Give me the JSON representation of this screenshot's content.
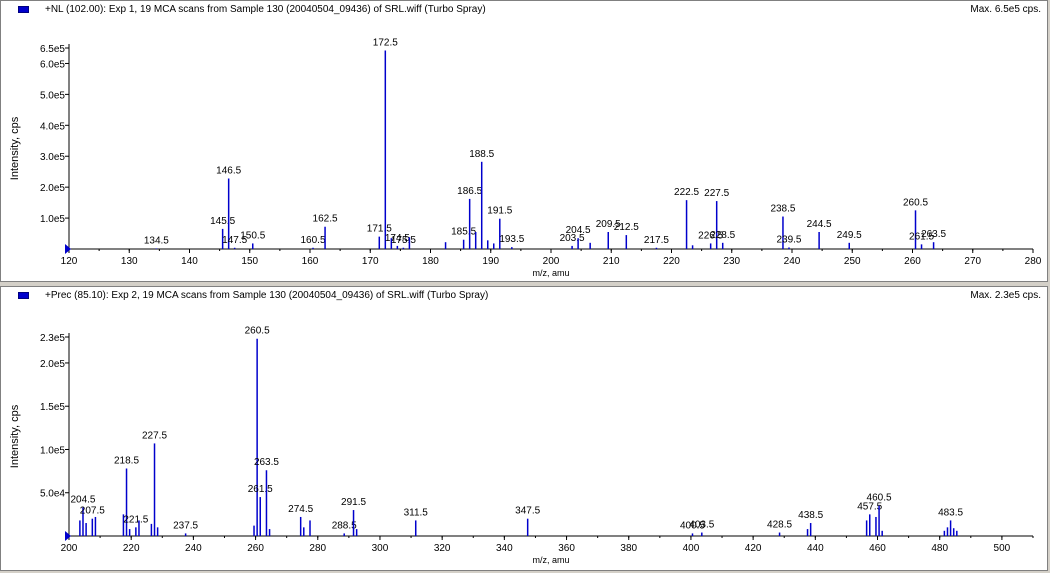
{
  "chart_data": [
    {
      "type": "bar",
      "title": "+NL (102.00): Exp 1, 19 MCA scans from Sample 130 (20040504_09436) of SRL.wiff (Turbo Spray)",
      "max_label": "Max. 6.5e5 cps.",
      "xlabel": "m/z, amu",
      "ylabel": "Intensity, cps",
      "xlim": [
        120,
        280
      ],
      "ylim": [
        0,
        650000
      ],
      "x_ticks": [
        120,
        130,
        140,
        150,
        160,
        170,
        180,
        190,
        200,
        210,
        220,
        230,
        240,
        250,
        260,
        270,
        280
      ],
      "y_ticks": [
        {
          "v": 100000,
          "label": "1.0e5"
        },
        {
          "v": 200000,
          "label": "2.0e5"
        },
        {
          "v": 300000,
          "label": "3.0e5"
        },
        {
          "v": 400000,
          "label": "4.0e5"
        },
        {
          "v": 500000,
          "label": "5.0e5"
        },
        {
          "v": 600000,
          "label": "6.0e5"
        },
        {
          "v": 650000,
          "label": "6.5e5"
        }
      ],
      "peaks": [
        {
          "x": 134.5,
          "y": 2000,
          "label": "134.5"
        },
        {
          "x": 145.5,
          "y": 65000,
          "label": "145.5"
        },
        {
          "x": 146.5,
          "y": 228000,
          "label": "146.5"
        },
        {
          "x": 147.5,
          "y": 4000,
          "label": "147.5"
        },
        {
          "x": 150.5,
          "y": 18000,
          "label": "150.5"
        },
        {
          "x": 160.5,
          "y": 4000,
          "label": "160.5"
        },
        {
          "x": 162.5,
          "y": 72000,
          "label": "162.5"
        },
        {
          "x": 171.5,
          "y": 40000,
          "label": "171.5"
        },
        {
          "x": 172.5,
          "y": 642000,
          "label": "172.5"
        },
        {
          "x": 173.5,
          "y": 35000
        },
        {
          "x": 174.5,
          "y": 10000,
          "label": "174.5"
        },
        {
          "x": 175.5,
          "y": 4000,
          "label": "175.5"
        },
        {
          "x": 176.5,
          "y": 38000
        },
        {
          "x": 182.5,
          "y": 22000
        },
        {
          "x": 185.5,
          "y": 30000,
          "label": "185.5"
        },
        {
          "x": 186.5,
          "y": 162000,
          "label": "186.5"
        },
        {
          "x": 187.5,
          "y": 55000
        },
        {
          "x": 188.5,
          "y": 282000,
          "label": "188.5"
        },
        {
          "x": 189.5,
          "y": 28000
        },
        {
          "x": 190.5,
          "y": 18000
        },
        {
          "x": 191.5,
          "y": 98000,
          "label": "191.5"
        },
        {
          "x": 193.5,
          "y": 6000,
          "label": "193.5"
        },
        {
          "x": 203.5,
          "y": 10000,
          "label": "203.5"
        },
        {
          "x": 204.5,
          "y": 35000,
          "label": "204.5"
        },
        {
          "x": 206.5,
          "y": 20000
        },
        {
          "x": 209.5,
          "y": 55000,
          "label": "209.5"
        },
        {
          "x": 212.5,
          "y": 45000,
          "label": "212.5"
        },
        {
          "x": 217.5,
          "y": 4000,
          "label": "217.5"
        },
        {
          "x": 222.5,
          "y": 158000,
          "label": "222.5"
        },
        {
          "x": 223.5,
          "y": 12000
        },
        {
          "x": 226.5,
          "y": 18000,
          "label": "226.5"
        },
        {
          "x": 227.5,
          "y": 155000,
          "label": "227.5"
        },
        {
          "x": 228.5,
          "y": 20000,
          "label": "228.5"
        },
        {
          "x": 238.5,
          "y": 105000,
          "label": "238.5"
        },
        {
          "x": 239.5,
          "y": 5000,
          "label": "239.5"
        },
        {
          "x": 244.5,
          "y": 55000,
          "label": "244.5"
        },
        {
          "x": 249.5,
          "y": 20000,
          "label": "249.5"
        },
        {
          "x": 260.5,
          "y": 125000,
          "label": "260.5"
        },
        {
          "x": 261.5,
          "y": 15000,
          "label": "261.5"
        },
        {
          "x": 263.5,
          "y": 22000,
          "label": "263.5"
        }
      ]
    },
    {
      "type": "bar",
      "title": "+Prec (85.10): Exp 2, 19 MCA scans from Sample 130 (20040504_09436) of SRL.wiff (Turbo Spray)",
      "max_label": "Max. 2.3e5 cps.",
      "xlabel": "m/z, amu",
      "ylabel": "Intensity, cps",
      "xlim": [
        200,
        510
      ],
      "ylim": [
        0,
        230000
      ],
      "x_ticks": [
        200,
        220,
        240,
        260,
        280,
        300,
        320,
        340,
        360,
        380,
        400,
        420,
        440,
        460,
        480,
        500
      ],
      "y_ticks": [
        {
          "v": 50000,
          "label": "5.0e4"
        },
        {
          "v": 100000,
          "label": "1.0e5"
        },
        {
          "v": 150000,
          "label": "1.5e5"
        },
        {
          "v": 200000,
          "label": "2.0e5"
        },
        {
          "v": 230000,
          "label": "2.3e5"
        }
      ],
      "peaks": [
        {
          "x": 203.5,
          "y": 18000
        },
        {
          "x": 204.5,
          "y": 33000,
          "label": "204.5"
        },
        {
          "x": 205.5,
          "y": 15000
        },
        {
          "x": 207.5,
          "y": 20000,
          "label": "207.5"
        },
        {
          "x": 208.5,
          "y": 22000
        },
        {
          "x": 217.5,
          "y": 25000
        },
        {
          "x": 218.5,
          "y": 78000,
          "label": "218.5"
        },
        {
          "x": 219.5,
          "y": 8000
        },
        {
          "x": 221.5,
          "y": 10000,
          "label": "221.5"
        },
        {
          "x": 222.5,
          "y": 18000
        },
        {
          "x": 226.5,
          "y": 14000
        },
        {
          "x": 227.5,
          "y": 107000,
          "label": "227.5"
        },
        {
          "x": 228.5,
          "y": 10000
        },
        {
          "x": 237.5,
          "y": 3000,
          "label": "237.5"
        },
        {
          "x": 259.5,
          "y": 12000
        },
        {
          "x": 260.5,
          "y": 228000,
          "label": "260.5"
        },
        {
          "x": 261.5,
          "y": 45000,
          "label": "261.5"
        },
        {
          "x": 263.5,
          "y": 76000,
          "label": "263.5"
        },
        {
          "x": 264.5,
          "y": 8000
        },
        {
          "x": 274.5,
          "y": 22000,
          "label": "274.5"
        },
        {
          "x": 275.5,
          "y": 10000
        },
        {
          "x": 277.5,
          "y": 18000
        },
        {
          "x": 288.5,
          "y": 3000,
          "label": "288.5"
        },
        {
          "x": 291.5,
          "y": 30000,
          "label": "291.5"
        },
        {
          "x": 292.5,
          "y": 8000
        },
        {
          "x": 311.5,
          "y": 18000,
          "label": "311.5"
        },
        {
          "x": 347.5,
          "y": 20000,
          "label": "347.5"
        },
        {
          "x": 400.5,
          "y": 3000,
          "label": "400.5"
        },
        {
          "x": 403.5,
          "y": 4000,
          "label": "403.5"
        },
        {
          "x": 428.5,
          "y": 4000,
          "label": "428.5"
        },
        {
          "x": 438.5,
          "y": 15000,
          "label": "438.5"
        },
        {
          "x": 437.5,
          "y": 8000
        },
        {
          "x": 456.5,
          "y": 18000
        },
        {
          "x": 457.5,
          "y": 25000,
          "label": "457.5"
        },
        {
          "x": 459.5,
          "y": 22000
        },
        {
          "x": 460.5,
          "y": 35000,
          "label": "460.5"
        },
        {
          "x": 461.5,
          "y": 6000
        },
        {
          "x": 481.5,
          "y": 6000
        },
        {
          "x": 482.5,
          "y": 10000
        },
        {
          "x": 483.5,
          "y": 18000,
          "label": "483.5"
        },
        {
          "x": 484.5,
          "y": 9000
        },
        {
          "x": 485.5,
          "y": 6000
        }
      ]
    }
  ]
}
